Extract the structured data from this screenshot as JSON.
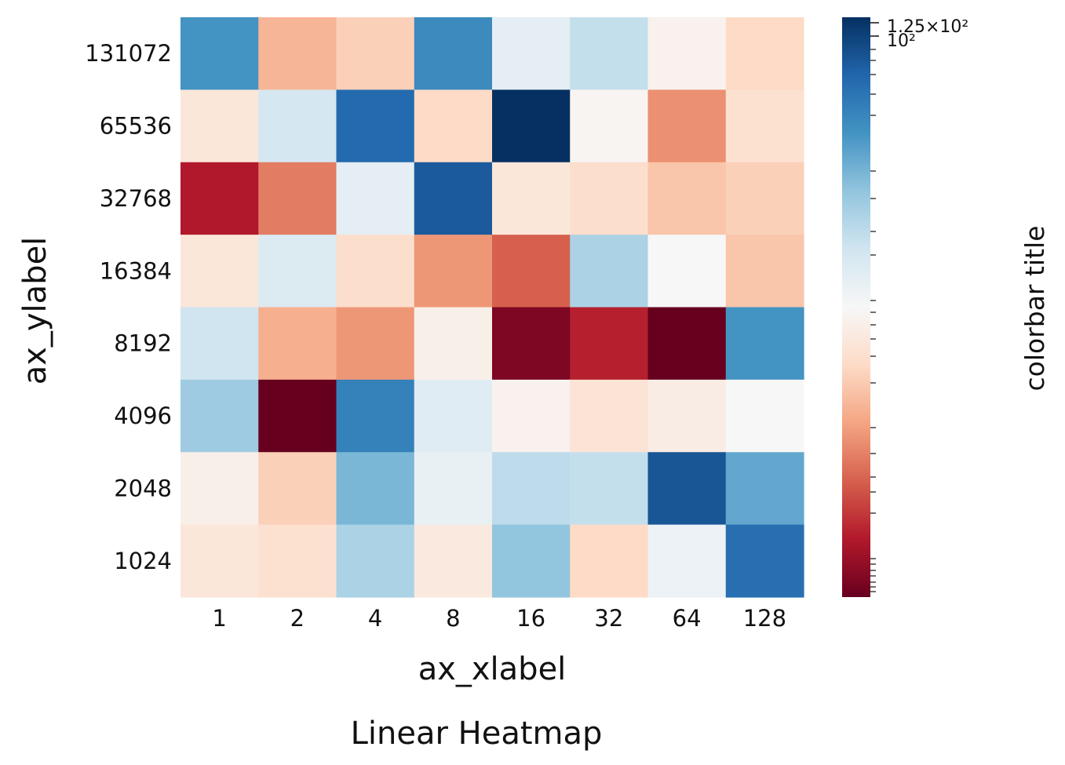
{
  "chart_data": {
    "type": "heatmap",
    "title": "Linear Heatmap",
    "xlabel": "ax_xlabel",
    "ylabel": "ax_ylabel",
    "x_categories": [
      "1",
      "2",
      "4",
      "8",
      "16",
      "32",
      "64",
      "128"
    ],
    "y_categories": [
      "131072",
      "65536",
      "32768",
      "16384",
      "8192",
      "4096",
      "2048",
      "1024"
    ],
    "values": [
      [
        0.8,
        0.33,
        0.38,
        0.82,
        0.55,
        0.62,
        0.48,
        0.4
      ],
      [
        0.44,
        0.59,
        0.89,
        0.4,
        1.0,
        0.49,
        0.27,
        0.42
      ],
      [
        0.1,
        0.24,
        0.55,
        0.92,
        0.44,
        0.41,
        0.36,
        0.38
      ],
      [
        0.44,
        0.57,
        0.41,
        0.28,
        0.2,
        0.66,
        0.5,
        0.36
      ],
      [
        0.6,
        0.32,
        0.28,
        0.47,
        0.03,
        0.11,
        0.0,
        0.8
      ],
      [
        0.68,
        0.0,
        0.84,
        0.56,
        0.48,
        0.43,
        0.46,
        0.5
      ],
      [
        0.47,
        0.38,
        0.73,
        0.54,
        0.63,
        0.62,
        0.93,
        0.76
      ],
      [
        0.44,
        0.42,
        0.66,
        0.45,
        0.7,
        0.4,
        0.53,
        0.88
      ]
    ],
    "colormap": "RdBu",
    "colormap_stops": [
      "#67001f",
      "#b2182b",
      "#d6604d",
      "#f4a582",
      "#fddbc7",
      "#f7f7f7",
      "#d1e5f0",
      "#92c5de",
      "#4393c3",
      "#2166ac",
      "#053061"
    ],
    "colorbar": {
      "title": "colorbar title",
      "scale": "log",
      "tick_labels": [
        "1.25×10²",
        "10²"
      ]
    },
    "grid": false
  }
}
